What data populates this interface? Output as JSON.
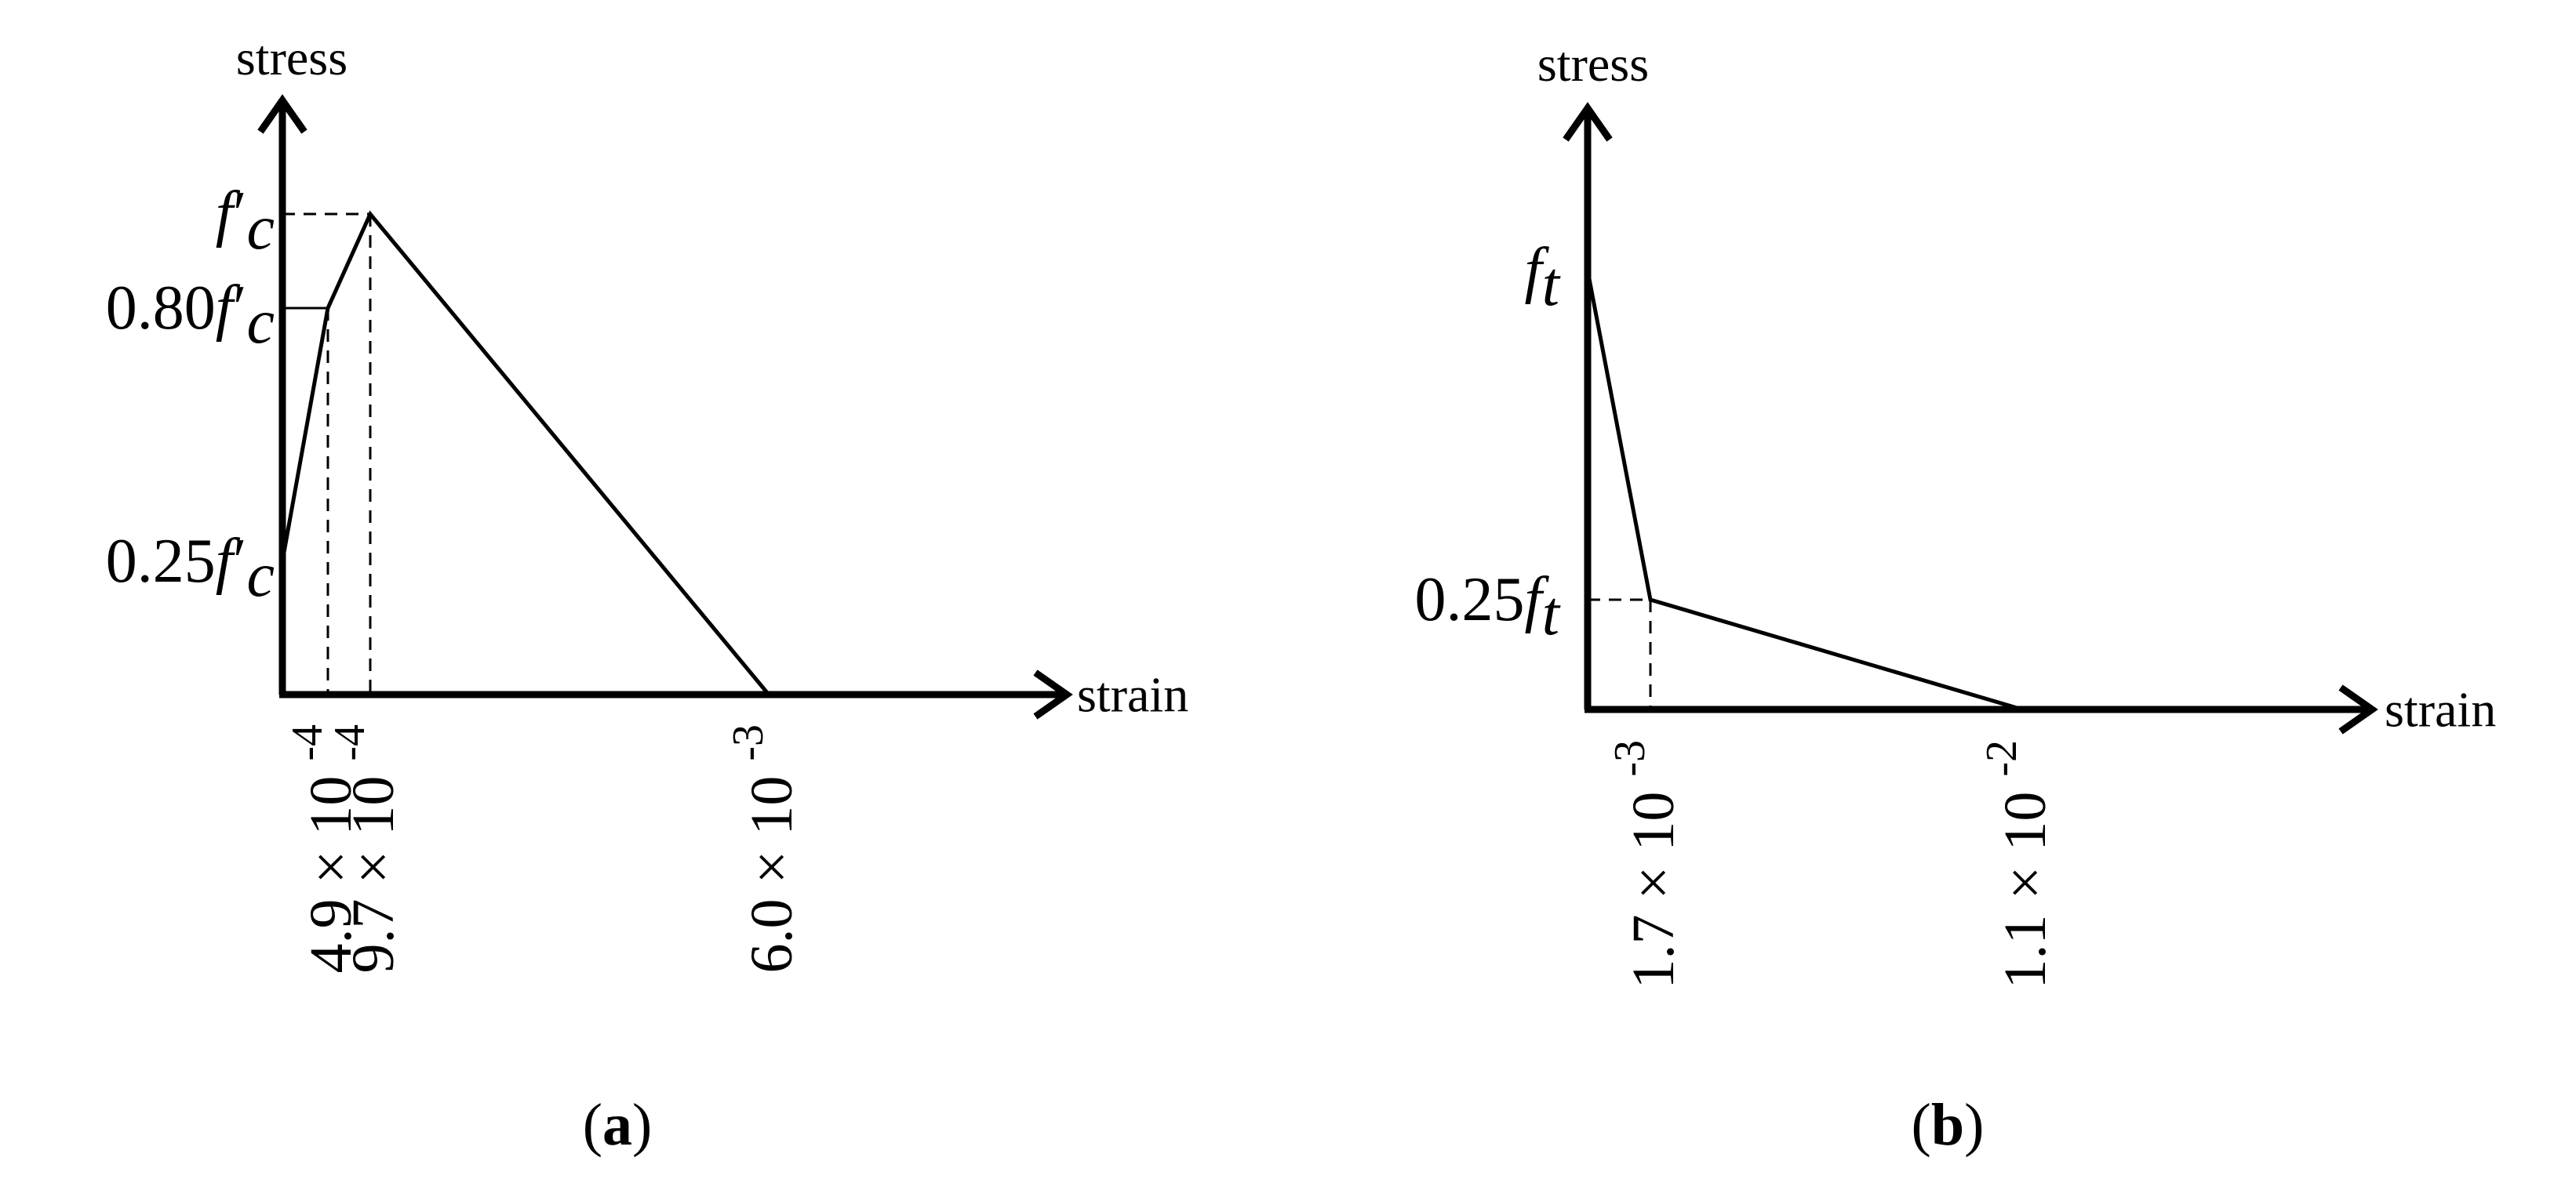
{
  "chart_data": [
    {
      "type": "line",
      "panel_label": "a",
      "caption_left": "(",
      "caption_right": ")",
      "xlabel": "strain",
      "ylabel": "stress",
      "points": [
        {
          "x": 0,
          "y": 0.25
        },
        {
          "x": 0.00049,
          "y": 0.8
        },
        {
          "x": 0.00097,
          "y": 1.0
        },
        {
          "x": 0.006,
          "y": 0
        }
      ],
      "y_ticks": [
        {
          "value": 1.0,
          "coef": "",
          "sym": "f",
          "prime": "′",
          "sub": "c",
          "ref_line": "dashed"
        },
        {
          "value": 0.8,
          "coef": "0.80",
          "sym": "f",
          "prime": "′",
          "sub": "c",
          "ref_line": "solid"
        },
        {
          "value": 0.25,
          "coef": "0.25",
          "sym": "f",
          "prime": "′",
          "sub": "c",
          "ref_line": "none"
        }
      ],
      "x_ticks": [
        {
          "value": 0.00049,
          "mant": "4.9 × 10",
          "exp": "-4",
          "ref_line": "dashed"
        },
        {
          "value": 0.00097,
          "mant": "9.7 × 10",
          "exp": "-4",
          "ref_line": "dashed"
        },
        {
          "value": 0.006,
          "mant": "6.0 × 10",
          "exp": "-3",
          "ref_line": "none"
        }
      ]
    },
    {
      "type": "line",
      "panel_label": "b",
      "caption_left": "(",
      "caption_right": ")",
      "xlabel": "strain",
      "ylabel": "stress",
      "points": [
        {
          "x": 0,
          "y": 1.0
        },
        {
          "x": 0.0017,
          "y": 0.25
        },
        {
          "x": 0.011,
          "y": 0
        }
      ],
      "y_ticks": [
        {
          "value": 1.0,
          "coef": "",
          "sym": "f",
          "prime": "",
          "sub": "t",
          "ref_line": "none"
        },
        {
          "value": 0.25,
          "coef": "0.25",
          "sym": "f",
          "prime": "",
          "sub": "t",
          "ref_line": "dashed"
        }
      ],
      "x_ticks": [
        {
          "value": 0.0017,
          "mant": "1.7 × 10",
          "exp": "-3",
          "ref_line": "dashed"
        },
        {
          "value": 0.011,
          "mant": "1.1 × 10",
          "exp": "-2",
          "ref_line": "none"
        }
      ]
    }
  ]
}
